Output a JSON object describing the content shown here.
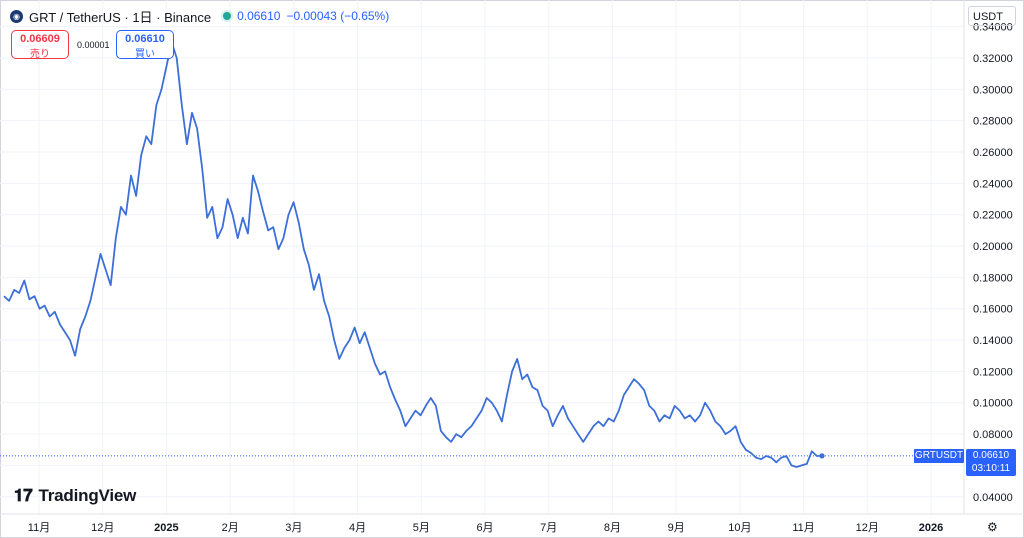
{
  "header": {
    "symbol_icon": "grt-logo-icon",
    "pair": "GRT / TetherUS · 1日 · Binance",
    "last": "0.06610",
    "change": "−0.00043 (−0.65%)"
  },
  "currency_button": "USDT",
  "trade": {
    "sell_value": "0.06609",
    "sell_label": "売り",
    "spread": "0.00001",
    "buy_value": "0.06610",
    "buy_label": "買い"
  },
  "price_tag": {
    "symbol": "GRTUSDT",
    "price": "0.06610",
    "countdown": "03:10:11"
  },
  "logo_text": "TradingView",
  "colors": {
    "line": "#3d6fd8",
    "buy": "#2962ff",
    "sell": "#f23645",
    "live": "#26a69a"
  },
  "chart_data": {
    "type": "line",
    "series": [
      {
        "values": [
          0.168,
          0.165,
          0.172,
          0.17,
          0.178,
          0.166,
          0.168,
          0.16,
          0.162,
          0.155,
          0.158,
          0.15,
          0.145,
          0.14,
          0.13,
          0.147,
          0.155,
          0.165,
          0.18,
          0.195,
          0.185,
          0.175,
          0.205,
          0.225,
          0.22,
          0.245,
          0.232,
          0.258,
          0.27,
          0.265,
          0.29,
          0.3,
          0.315,
          0.33,
          0.32,
          0.29,
          0.265,
          0.285,
          0.275,
          0.25,
          0.218,
          0.225,
          0.205,
          0.212,
          0.23,
          0.22,
          0.205,
          0.218,
          0.208,
          0.245,
          0.235,
          0.222,
          0.21,
          0.212,
          0.198,
          0.205,
          0.22,
          0.228,
          0.215,
          0.198,
          0.188,
          0.172,
          0.182,
          0.165,
          0.155,
          0.14,
          0.128,
          0.135,
          0.14,
          0.148,
          0.138,
          0.145,
          0.135,
          0.125,
          0.118,
          0.12,
          0.11,
          0.102,
          0.095,
          0.085,
          0.09,
          0.095,
          0.092,
          0.098,
          0.103,
          0.098,
          0.082,
          0.078,
          0.075,
          0.08,
          0.078,
          0.082,
          0.085,
          0.09,
          0.095,
          0.103,
          0.1,
          0.095,
          0.088,
          0.105,
          0.12,
          0.128,
          0.115,
          0.118,
          0.11,
          0.108,
          0.098,
          0.095,
          0.085,
          0.092,
          0.098,
          0.09,
          0.085,
          0.08,
          0.075,
          0.08,
          0.085,
          0.088,
          0.085,
          0.09,
          0.088,
          0.095,
          0.105,
          0.11,
          0.115,
          0.112,
          0.108,
          0.098,
          0.095,
          0.088,
          0.092,
          0.09,
          0.098,
          0.095,
          0.09,
          0.092,
          0.088,
          0.092,
          0.1,
          0.095,
          0.088,
          0.085,
          0.08,
          0.082,
          0.085,
          0.075,
          0.07,
          0.068,
          0.065,
          0.064,
          0.066,
          0.065,
          0.062,
          0.065,
          0.066,
          0.06,
          0.059,
          0.06,
          0.061,
          0.069,
          0.066,
          0.0661
        ]
      }
    ],
    "x_axis": {
      "tick_labels": [
        "11月",
        "12月",
        "2025",
        "2月",
        "3月",
        "4月",
        "5月",
        "6月",
        "7月",
        "8月",
        "9月",
        "10月",
        "11月",
        "12月",
        "2026"
      ],
      "bold_labels": [
        "2025",
        "2026"
      ]
    },
    "y_axis": {
      "ticks": [
        0.04,
        0.06,
        0.08,
        0.1,
        0.12,
        0.14,
        0.16,
        0.18,
        0.2,
        0.22,
        0.24,
        0.26,
        0.28,
        0.3,
        0.32,
        0.34
      ],
      "tick_labels": [
        "0.04000",
        "0.06000",
        "0.08000",
        "0.10000",
        "0.12000",
        "0.14000",
        "0.16000",
        "0.18000",
        "0.20000",
        "0.22000",
        "0.24000",
        "0.26000",
        "0.28000",
        "0.30000",
        "0.32000",
        "0.34000"
      ],
      "range": [
        0.029,
        0.357
      ]
    },
    "last_price": 0.0661,
    "grid": true
  }
}
